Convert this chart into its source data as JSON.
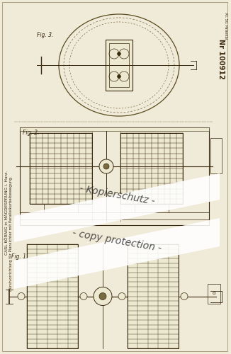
{
  "bg_color": "#f0ead8",
  "paper_color": "#ede8d0",
  "patent_number": "Nr 100912",
  "patent_number_small": "Kl. 50 Patentbl.",
  "inventor_text": "CARL KÖRNIG in MÄGDESPRUNG i. Harz.",
  "description_text": "Bürstvorrichtung für Plansichter mit Parallelkurbelbewegung.",
  "watermark1": "- Kopierschutz -",
  "watermark2": "- copy protection -",
  "fig3_label": "Fig. 3.",
  "fig2_label": "Fig. 2.",
  "fig1_label": "Fig. 1.",
  "line_color": "#7a6a40",
  "dark_line": "#3a2a10",
  "mid_line": "#5a4a20"
}
